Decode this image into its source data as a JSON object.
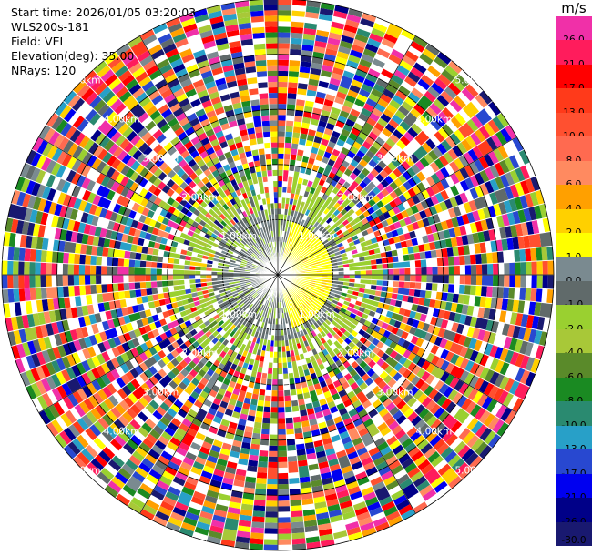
{
  "info": {
    "start_time": "Start time: 2026/01/05 03:20:03",
    "instrument": "WLS200s-181",
    "field": "Field: VEL",
    "elevation": "Elevation(deg): 35.00",
    "nrays": "NRays: 120"
  },
  "colorbar": {
    "unit": "m/s",
    "bins": [
      {
        "label": "26.0",
        "color": "#f030a8"
      },
      {
        "label": "21.0",
        "color": "#ff1c5c"
      },
      {
        "label": "17.0",
        "color": "#ff0000"
      },
      {
        "label": "13.0",
        "color": "#ff3a1a"
      },
      {
        "label": "10.0",
        "color": "#ff5030"
      },
      {
        "label": "8.0",
        "color": "#ff6a50"
      },
      {
        "label": "6.0",
        "color": "#ff8a60"
      },
      {
        "label": "4.0",
        "color": "#ffa000"
      },
      {
        "label": "2.0",
        "color": "#ffd000"
      },
      {
        "label": "1.0",
        "color": "#ffff00"
      },
      {
        "label": "0.0",
        "color": "#7a8a90"
      },
      {
        "label": "-1.0",
        "color": "#606a6a"
      },
      {
        "label": "-2.0",
        "color": "#9ad030"
      },
      {
        "label": "-4.0",
        "color": "#a8c838"
      },
      {
        "label": "-6.0",
        "color": "#5a8a2a"
      },
      {
        "label": "-8.0",
        "color": "#1a8a22"
      },
      {
        "label": "-10.0",
        "color": "#2a8a70"
      },
      {
        "label": "-13.0",
        "color": "#28a0c8"
      },
      {
        "label": "-17.0",
        "color": "#2848d0"
      },
      {
        "label": "-21.0",
        "color": "#0000f0"
      },
      {
        "label": "-26.0",
        "color": "#000088"
      },
      {
        "label": "-30.0",
        "color": "#191970"
      }
    ]
  },
  "range_rings": [
    {
      "label": "1.00km"
    },
    {
      "label": "2.00km"
    },
    {
      "label": "3.00km"
    },
    {
      "label": "4.00km"
    },
    {
      "label": "5.00km"
    }
  ],
  "map_data": {
    "max_range_km": 5.0,
    "range_gate_km": 0.1,
    "nrays": 120
  }
}
